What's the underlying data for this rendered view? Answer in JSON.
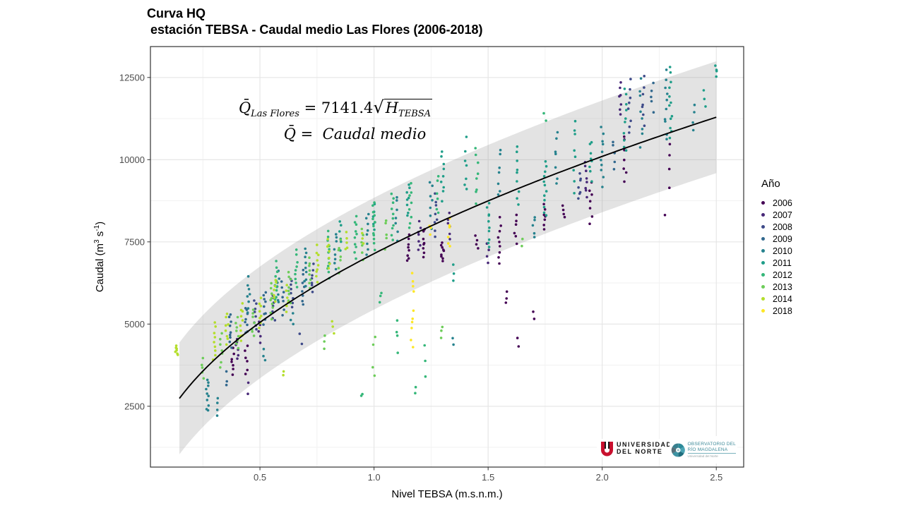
{
  "title": {
    "line1": "Curva HQ",
    "line2": " estación TEBSA - Caudal medio Las Flores (2006-2018)"
  },
  "formula": {
    "q1": "Q̄",
    "q1_sub": "Las Flores",
    "eq1": "=",
    "coef": "7141.4",
    "radical": "√",
    "h": "H",
    "h_sub": "TEBSA",
    "q2": "Q̄",
    "eq2": "=",
    "line2_text": "Caudal medio"
  },
  "axes": {
    "x_title": "Nivel TEBSA (m.s.n.m.)",
    "y_title_parts": {
      "p1": "Caudal (m",
      "sup1": "3",
      "p2": " s",
      "sup2": "-1",
      "p3": ")"
    },
    "tick_color": "#4d4d4d",
    "border_color": "#333333"
  },
  "legend": {
    "title": "Año"
  },
  "logos": {
    "universidad": {
      "emblem": "UN",
      "line1": "UNIVERSIDAD",
      "line2": "DEL NORTE"
    },
    "observatorio": {
      "line1": "OBSERVATORIO DEL",
      "line2": "RÍO MAGDALENA",
      "caption": "Universidad del Norte"
    }
  },
  "chart_data": {
    "type": "scatter",
    "title": "Curva HQ estación TEBSA - Caudal medio Las Flores (2006-2018)",
    "xlabel": "Nivel TEBSA (m.s.n.m.)",
    "ylabel": "Caudal (m3 s-1)",
    "xlim": [
      0.02,
      2.62
    ],
    "ylim": [
      650,
      13440
    ],
    "x_ticks": [
      0.5,
      1.0,
      1.5,
      2.0,
      2.5
    ],
    "x_tick_labels": [
      "0.5",
      "1.0",
      "1.5",
      "2.0",
      "2.5"
    ],
    "x_minor": [
      0.25,
      0.75,
      1.25,
      1.75,
      2.25
    ],
    "y_ticks": [
      2500,
      5000,
      7500,
      10000,
      12500
    ],
    "y_tick_labels": [
      "2500",
      "5000",
      "7500",
      "10000",
      "12500"
    ],
    "y_minor": [
      1250,
      3750,
      6250,
      8750,
      11250
    ],
    "grid": true,
    "legend_position": "right",
    "fit_curve": {
      "formula": "Q = 7141.4 * sqrt(H)",
      "coefficient": 7141.4,
      "domain": [
        0.147,
        2.5
      ],
      "band_halfwidth_q": 1700,
      "line_color": "#000000",
      "band_color": "#7f7f7f",
      "band_opacity": 0.22
    },
    "point_radius": 1.8,
    "series": [
      {
        "name": "2006",
        "color": "#440154",
        "clusters": [
          [
            0.38,
            3450,
            4250,
            7
          ],
          [
            0.44,
            3500,
            4300,
            6
          ],
          [
            1.15,
            6900,
            7700,
            8
          ],
          [
            1.22,
            7000,
            7900,
            8
          ],
          [
            1.3,
            6900,
            7500,
            9
          ],
          [
            1.45,
            7300,
            7700,
            4
          ],
          [
            1.55,
            6800,
            8200,
            9
          ],
          [
            1.62,
            7500,
            8300,
            6
          ],
          [
            1.75,
            7900,
            8600,
            7
          ],
          [
            1.83,
            8200,
            8600,
            4
          ],
          [
            1.95,
            8100,
            9300,
            7
          ],
          [
            2.1,
            9300,
            10800,
            7
          ],
          [
            2.3,
            9200,
            10400,
            4
          ],
          [
            1.58,
            5600,
            6000,
            3
          ],
          [
            1.7,
            5100,
            5400,
            2
          ],
          [
            1.63,
            4300,
            4500,
            2
          ],
          [
            2.28,
            8300,
            8450,
            1
          ]
        ]
      },
      {
        "name": "2007",
        "color": "#482878",
        "clusters": [
          [
            0.4,
            3900,
            4600,
            6
          ],
          [
            0.5,
            4400,
            5100,
            5
          ],
          [
            1.2,
            7300,
            8100,
            7
          ],
          [
            1.33,
            7600,
            8400,
            6
          ],
          [
            1.93,
            8900,
            9900,
            8
          ],
          [
            2.08,
            11300,
            12400,
            7
          ],
          [
            0.45,
            2950,
            3200,
            2
          ],
          [
            1.5,
            6900,
            7400,
            4
          ]
        ]
      },
      {
        "name": "2008",
        "color": "#3e4a89",
        "clusters": [
          [
            0.48,
            4800,
            5700,
            8
          ],
          [
            0.56,
            5100,
            5900,
            7
          ],
          [
            0.64,
            5500,
            6400,
            8
          ],
          [
            0.73,
            6000,
            6800,
            7
          ],
          [
            1.27,
            7700,
            8900,
            8
          ],
          [
            1.9,
            8800,
            9600,
            7
          ],
          [
            2.12,
            10800,
            12400,
            8
          ],
          [
            2.18,
            11000,
            12550,
            7
          ],
          [
            0.68,
            4300,
            4600,
            2
          ]
        ]
      },
      {
        "name": "2009",
        "color": "#31688e",
        "clusters": [
          [
            0.37,
            4300,
            5300,
            9
          ],
          [
            0.44,
            4700,
            5500,
            8
          ],
          [
            0.52,
            5000,
            6000,
            9
          ],
          [
            0.6,
            5300,
            6300,
            7
          ],
          [
            0.69,
            5600,
            6600,
            8
          ],
          [
            0.35,
            3100,
            3500,
            3
          ],
          [
            2.05,
            9700,
            10600,
            5
          ],
          [
            2.22,
            11500,
            12300,
            5
          ]
        ]
      },
      {
        "name": "2010",
        "color": "#26828e",
        "clusters": [
          [
            0.27,
            2350,
            3300,
            10
          ],
          [
            0.31,
            2200,
            2700,
            4
          ],
          [
            0.45,
            5300,
            6400,
            8
          ],
          [
            0.58,
            5600,
            6600,
            7
          ],
          [
            0.7,
            6100,
            7300,
            9
          ],
          [
            0.83,
            6700,
            7800,
            8
          ],
          [
            0.97,
            7100,
            8400,
            8
          ],
          [
            1.1,
            7600,
            8900,
            7
          ],
          [
            1.25,
            8000,
            9400,
            7
          ],
          [
            1.55,
            8900,
            10300,
            7
          ],
          [
            1.8,
            9200,
            10900,
            7
          ],
          [
            2.0,
            9200,
            11000,
            10
          ],
          [
            2.17,
            10400,
            12400,
            8
          ],
          [
            2.28,
            10600,
            12760,
            10
          ],
          [
            2.4,
            11000,
            11700,
            4
          ],
          [
            0.52,
            3900,
            4200,
            3
          ],
          [
            1.35,
            4400,
            4700,
            2
          ],
          [
            0.64,
            5000,
            5400,
            3
          ],
          [
            1.7,
            7600,
            8300,
            5
          ]
        ]
      },
      {
        "name": "2011",
        "color": "#1f9e89",
        "clusters": [
          [
            0.85,
            7300,
            8100,
            6
          ],
          [
            1.0,
            7700,
            8600,
            7
          ],
          [
            1.15,
            8300,
            9300,
            8
          ],
          [
            1.3,
            8800,
            10200,
            9
          ],
          [
            1.4,
            9000,
            10600,
            7
          ],
          [
            1.5,
            7300,
            8700,
            10
          ],
          [
            1.63,
            8600,
            10500,
            9
          ],
          [
            1.75,
            8300,
            10000,
            12
          ],
          [
            1.88,
            9100,
            11300,
            8
          ],
          [
            1.95,
            9400,
            10600,
            8
          ],
          [
            2.1,
            10200,
            12200,
            10
          ],
          [
            2.3,
            10600,
            12800,
            12
          ],
          [
            1.35,
            6300,
            6800,
            3
          ],
          [
            2.5,
            12550,
            12850,
            4
          ],
          [
            2.45,
            11700,
            12100,
            3
          ]
        ]
      },
      {
        "name": "2012",
        "color": "#35b779",
        "clusters": [
          [
            0.57,
            5700,
            6900,
            10
          ],
          [
            0.66,
            6100,
            7200,
            9
          ],
          [
            0.8,
            6400,
            7800,
            12
          ],
          [
            0.92,
            7000,
            8300,
            10
          ],
          [
            1.0,
            7300,
            8700,
            12
          ],
          [
            1.08,
            7600,
            9000,
            10
          ],
          [
            1.16,
            7900,
            9200,
            8
          ],
          [
            1.28,
            8300,
            9600,
            6
          ],
          [
            1.45,
            8700,
            10300,
            8
          ],
          [
            1.1,
            4200,
            5200,
            4
          ],
          [
            1.22,
            3500,
            4200,
            3
          ],
          [
            1.03,
            5600,
            6000,
            3
          ],
          [
            0.95,
            2700,
            3000,
            2
          ],
          [
            1.18,
            2900,
            3100,
            2
          ],
          [
            1.75,
            11200,
            11500,
            2
          ]
        ]
      },
      {
        "name": "2013",
        "color": "#6dcd59",
        "clusters": [
          [
            0.25,
            3300,
            4000,
            5
          ],
          [
            0.33,
            3700,
            4700,
            7
          ],
          [
            0.4,
            4300,
            5200,
            8
          ],
          [
            0.47,
            4600,
            5500,
            7
          ],
          [
            0.55,
            5200,
            6200,
            9
          ],
          [
            0.63,
            5600,
            6600,
            8
          ],
          [
            0.72,
            6100,
            7000,
            8
          ],
          [
            0.85,
            6600,
            7500,
            7
          ],
          [
            0.95,
            7000,
            7900,
            6
          ],
          [
            1.05,
            7300,
            8200,
            5
          ],
          [
            0.78,
            4200,
            4600,
            3
          ],
          [
            1.0,
            3400,
            4600,
            4
          ],
          [
            1.3,
            4600,
            5000,
            3
          ],
          [
            1.65,
            7400,
            7700,
            2
          ]
        ]
      },
      {
        "name": "2014",
        "color": "#b4de2c",
        "clusters": [
          [
            0.135,
            4050,
            4350,
            7
          ],
          [
            0.3,
            3900,
            5050,
            9
          ],
          [
            0.355,
            4400,
            5300,
            8
          ],
          [
            0.42,
            4450,
            5600,
            10
          ],
          [
            0.5,
            4900,
            5800,
            8
          ],
          [
            0.565,
            5650,
            6350,
            7
          ],
          [
            0.62,
            5350,
            6200,
            6
          ],
          [
            0.75,
            6300,
            7350,
            9
          ],
          [
            0.8,
            6750,
            7600,
            7
          ],
          [
            0.88,
            7250,
            7750,
            5
          ],
          [
            0.95,
            7450,
            7750,
            3
          ],
          [
            0.6,
            3400,
            3650,
            2
          ],
          [
            0.82,
            4750,
            5100,
            3
          ]
        ]
      },
      {
        "name": "2018",
        "color": "#fde725",
        "clusters": [
          [
            1.165,
            4350,
            4550,
            2
          ],
          [
            1.17,
            4850,
            5350,
            4
          ],
          [
            1.17,
            6000,
            6500,
            4
          ],
          [
            1.33,
            7300,
            8250,
            6
          ],
          [
            1.245,
            7700,
            8050,
            3
          ]
        ]
      }
    ]
  }
}
